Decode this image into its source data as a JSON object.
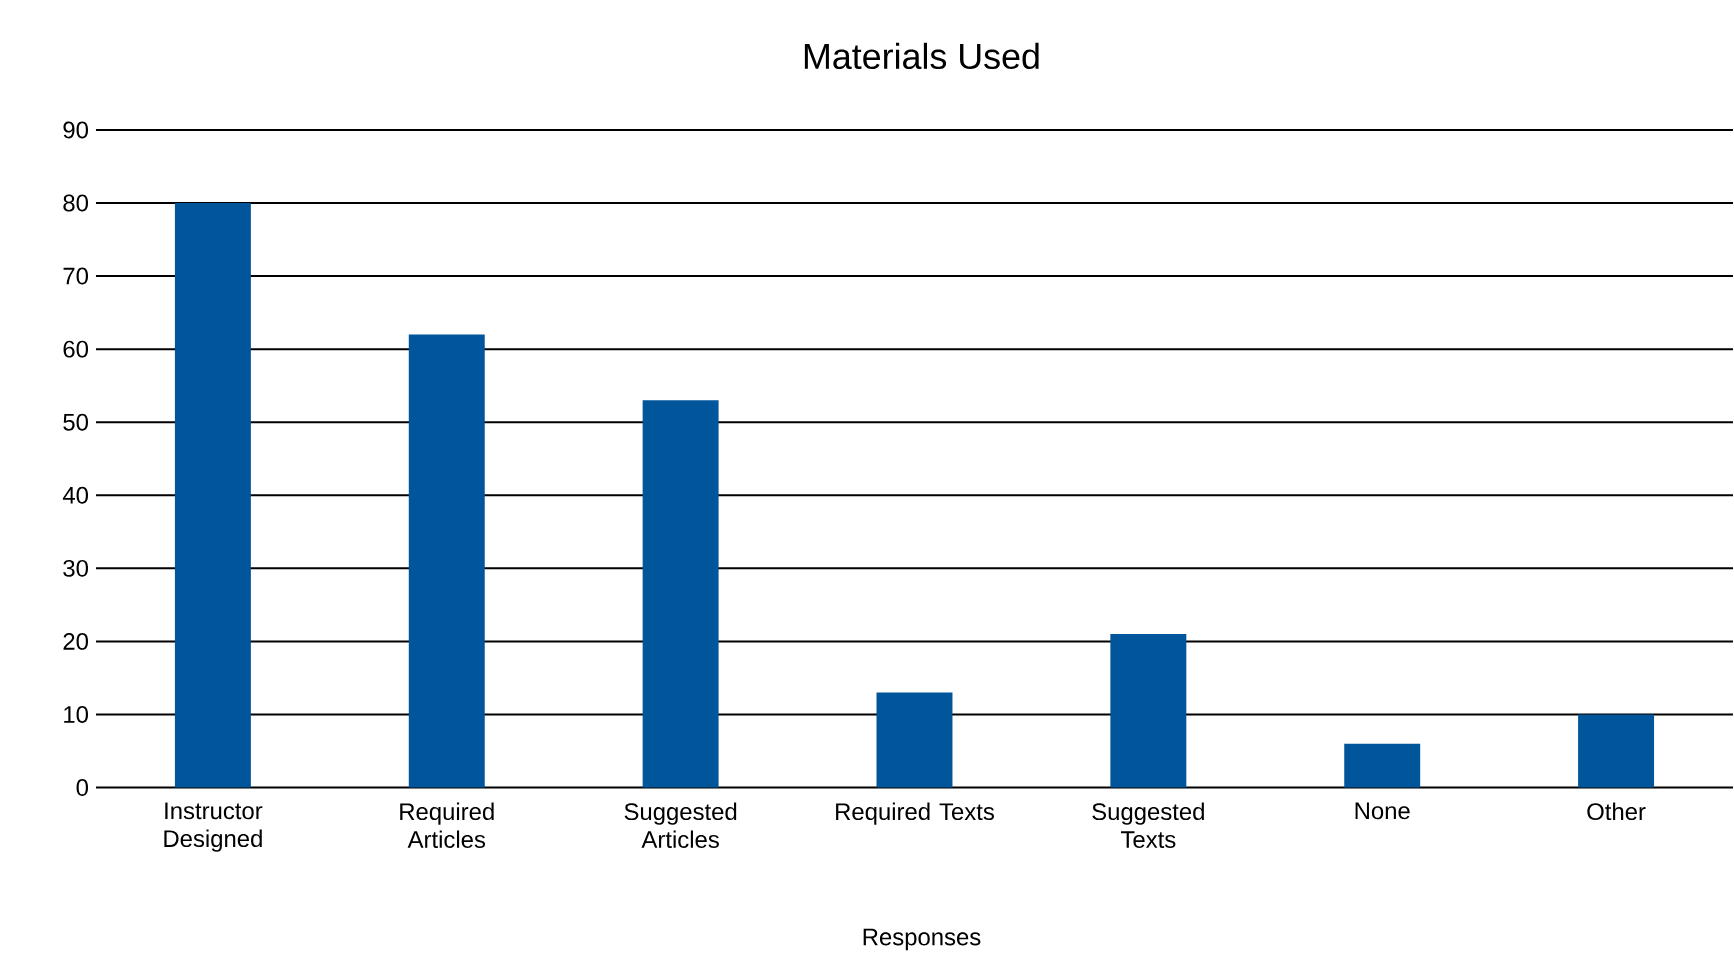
{
  "chart_data": {
    "type": "bar",
    "title": "Materials Used",
    "xlabel": "Responses",
    "categories": [
      "Instructor Designed",
      "Required Articles",
      "Suggested Articles",
      "Required Texts",
      "Suggested Texts",
      "None",
      "Other"
    ],
    "values": [
      80,
      62,
      53,
      13,
      21,
      6,
      10
    ],
    "color": "#00559b",
    "ylim": [
      0,
      90
    ],
    "yticks": [
      0,
      10,
      20,
      30,
      40,
      50,
      60,
      70,
      80,
      90
    ],
    "grid": "y"
  }
}
